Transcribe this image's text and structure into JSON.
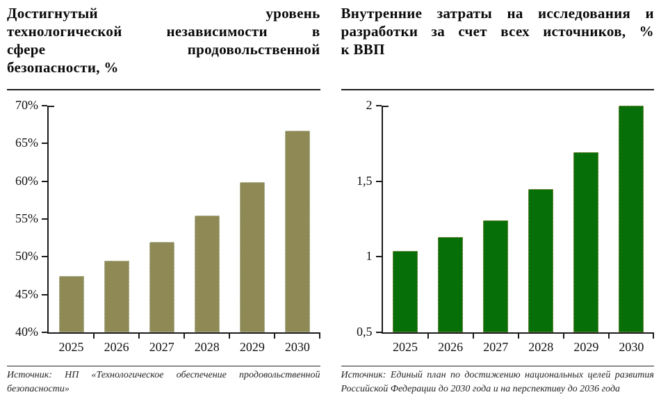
{
  "chart_data": [
    {
      "type": "bar",
      "title": "Достигнутый уровень технологической независимости в сфере продовольственной безопасности, %",
      "title_lines": [
        "Достигнутый уровень",
        "технологической независимости в",
        "сфере продовольственной",
        "безопасности, %"
      ],
      "categories": [
        "2025",
        "2026",
        "2027",
        "2028",
        "2029",
        "2030"
      ],
      "values": [
        47.5,
        49.5,
        52,
        55.5,
        59.9,
        66.7
      ],
      "xlabel": "",
      "ylabel": "",
      "ylim": [
        40,
        70
      ],
      "yticks": [
        {
          "value": 40,
          "label": "40%"
        },
        {
          "value": 45,
          "label": "45%"
        },
        {
          "value": 50,
          "label": "50%"
        },
        {
          "value": 55,
          "label": "55%"
        },
        {
          "value": 60,
          "label": "60%"
        },
        {
          "value": 65,
          "label": "65%"
        },
        {
          "value": 70,
          "label": "70%"
        }
      ],
      "grid": false,
      "legend": false,
      "bar_color": "#8F8A55",
      "bar_border_color": "#C7D6C9",
      "source": "Источник: НП «Технологическое обеспечение продовольственной безопасности»",
      "source_lines": [
        "Источник: НП «Технологическое обеспечение продовольственной",
        "безопасности»"
      ]
    },
    {
      "type": "bar",
      "title": "Внутренние затраты на исследования и разработки за счет всех источников, % к ВВП",
      "title_lines": [
        "Внутренние затраты на исследования и",
        "разработки за счет всех источников, %",
        "к ВВП"
      ],
      "categories": [
        "2025",
        "2026",
        "2027",
        "2028",
        "2029",
        "2030"
      ],
      "values": [
        1.04,
        1.13,
        1.24,
        1.45,
        1.69,
        2
      ],
      "xlabel": "",
      "ylabel": "",
      "ylim": [
        0.5,
        2
      ],
      "yticks": [
        {
          "value": 0.5,
          "label": "0,5"
        },
        {
          "value": 1,
          "label": "1"
        },
        {
          "value": 1.5,
          "label": "1,5"
        },
        {
          "value": 2,
          "label": "2"
        }
      ],
      "grid": false,
      "legend": false,
      "bar_color": "#076F08",
      "bar_border_color": "#C2996B",
      "source": "Источник: Единый план по достижению национальных целей развития Российской Федерации до 2030 года и на перспективу до 2036 года",
      "source_lines": [
        "Источник: Единый план по достижению национальных целей развития",
        "Российской Федерации до 2030 года и на перспективу до 2036 года"
      ]
    }
  ]
}
